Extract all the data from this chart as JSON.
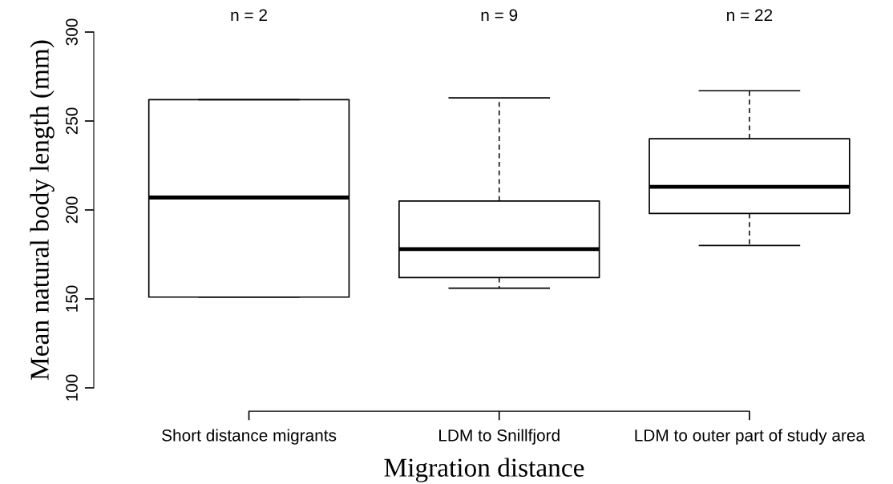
{
  "chart_data": {
    "type": "box",
    "xlabel": "Migration distance",
    "ylabel": "Mean natural body length (mm)",
    "categories": [
      "Short distance migrants",
      "LDM to Snillfjord",
      "LDM to outer part of study area"
    ],
    "boxes": [
      {
        "low": 151,
        "q1": 151,
        "median": 207,
        "q3": 262,
        "high": 262
      },
      {
        "low": 156,
        "q1": 162,
        "median": 178,
        "q3": 205,
        "high": 263
      },
      {
        "low": 180,
        "q1": 198,
        "median": 213,
        "q3": 240,
        "high": 267
      }
    ],
    "annotations": [
      "n = 2",
      "n = 9",
      "n = 22"
    ],
    "ylim": [
      100,
      300
    ],
    "yticks": [
      100,
      150,
      200,
      250,
      300
    ],
    "grid": false,
    "legend": false
  }
}
